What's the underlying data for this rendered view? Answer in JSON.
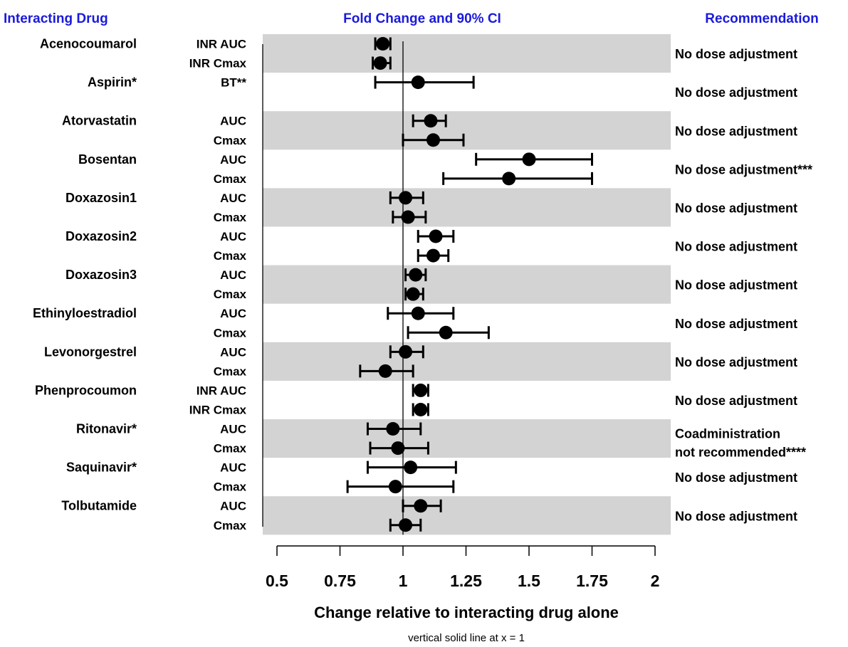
{
  "chart_data": {
    "type": "forest",
    "headers": {
      "left": "Interacting Drug",
      "center": "Fold Change and 90% CI",
      "right": "Recommendation"
    },
    "xlabel": "Change relative to interacting drug alone",
    "note": "vertical solid line at x = 1",
    "xlim": [
      0.45,
      2.05
    ],
    "reference_line": 1,
    "xticks": [
      0.5,
      0.75,
      1,
      1.25,
      1.5,
      1.75,
      2
    ],
    "xtick_labels": [
      "0.5",
      "0.75",
      "1",
      "1.25",
      "1.5",
      "1.75",
      "2"
    ],
    "band_color": "#d3d3d3",
    "groups": [
      {
        "drug": "Acenocoumarol",
        "recommendation": [
          "No dose adjustment"
        ],
        "shaded": true,
        "rows": [
          {
            "metric": "INR AUC",
            "est": 0.92,
            "lo": 0.89,
            "hi": 0.95
          },
          {
            "metric": "INR Cmax",
            "est": 0.91,
            "lo": 0.88,
            "hi": 0.95
          }
        ]
      },
      {
        "drug": "Aspirin*",
        "recommendation": [
          "No dose adjustment"
        ],
        "shaded": false,
        "rows": [
          {
            "metric": "BT**",
            "est": 1.06,
            "lo": 0.89,
            "hi": 1.28
          }
        ]
      },
      {
        "drug": "Atorvastatin",
        "recommendation": [
          "No dose adjustment"
        ],
        "shaded": true,
        "rows": [
          {
            "metric": "AUC",
            "est": 1.11,
            "lo": 1.04,
            "hi": 1.17
          },
          {
            "metric": "Cmax",
            "est": 1.12,
            "lo": 1.0,
            "hi": 1.24
          }
        ]
      },
      {
        "drug": "Bosentan",
        "recommendation": [
          "No dose adjustment***"
        ],
        "shaded": false,
        "rows": [
          {
            "metric": "AUC",
            "est": 1.5,
            "lo": 1.29,
            "hi": 1.75
          },
          {
            "metric": "Cmax",
            "est": 1.42,
            "lo": 1.16,
            "hi": 1.75
          }
        ]
      },
      {
        "drug": "Doxazosin1",
        "recommendation": [
          "No dose adjustment"
        ],
        "shaded": true,
        "rows": [
          {
            "metric": "AUC",
            "est": 1.01,
            "lo": 0.95,
            "hi": 1.08
          },
          {
            "metric": "Cmax",
            "est": 1.02,
            "lo": 0.96,
            "hi": 1.09
          }
        ]
      },
      {
        "drug": "Doxazosin2",
        "recommendation": [
          "No dose adjustment"
        ],
        "shaded": false,
        "rows": [
          {
            "metric": "AUC",
            "est": 1.13,
            "lo": 1.06,
            "hi": 1.2
          },
          {
            "metric": "Cmax",
            "est": 1.12,
            "lo": 1.06,
            "hi": 1.18
          }
        ]
      },
      {
        "drug": "Doxazosin3",
        "recommendation": [
          "No dose adjustment"
        ],
        "shaded": true,
        "rows": [
          {
            "metric": "AUC",
            "est": 1.05,
            "lo": 1.01,
            "hi": 1.09
          },
          {
            "metric": "Cmax",
            "est": 1.04,
            "lo": 1.01,
            "hi": 1.08
          }
        ]
      },
      {
        "drug": "Ethinyloestradiol",
        "recommendation": [
          "No dose adjustment"
        ],
        "shaded": false,
        "rows": [
          {
            "metric": "AUC",
            "est": 1.06,
            "lo": 0.94,
            "hi": 1.2
          },
          {
            "metric": "Cmax",
            "est": 1.17,
            "lo": 1.02,
            "hi": 1.34
          }
        ]
      },
      {
        "drug": "Levonorgestrel",
        "recommendation": [
          "No dose adjustment"
        ],
        "shaded": true,
        "rows": [
          {
            "metric": "AUC",
            "est": 1.01,
            "lo": 0.95,
            "hi": 1.08
          },
          {
            "metric": "Cmax",
            "est": 0.93,
            "lo": 0.83,
            "hi": 1.04
          }
        ]
      },
      {
        "drug": "Phenprocoumon",
        "recommendation": [
          "No dose adjustment"
        ],
        "shaded": false,
        "rows": [
          {
            "metric": "INR AUC",
            "est": 1.07,
            "lo": 1.04,
            "hi": 1.1
          },
          {
            "metric": "INR Cmax",
            "est": 1.07,
            "lo": 1.04,
            "hi": 1.1
          }
        ]
      },
      {
        "drug": "Ritonavir*",
        "recommendation": [
          "Coadministration",
          "not recommended****"
        ],
        "shaded": true,
        "rows": [
          {
            "metric": "AUC",
            "est": 0.96,
            "lo": 0.86,
            "hi": 1.07
          },
          {
            "metric": "Cmax",
            "est": 0.98,
            "lo": 0.87,
            "hi": 1.1
          }
        ]
      },
      {
        "drug": "Saquinavir*",
        "recommendation": [
          "No dose adjustment"
        ],
        "shaded": false,
        "rows": [
          {
            "metric": "AUC",
            "est": 1.03,
            "lo": 0.86,
            "hi": 1.21
          },
          {
            "metric": "Cmax",
            "est": 0.97,
            "lo": 0.78,
            "hi": 1.2
          }
        ]
      },
      {
        "drug": "Tolbutamide",
        "recommendation": [
          "No dose adjustment"
        ],
        "shaded": true,
        "rows": [
          {
            "metric": "AUC",
            "est": 1.07,
            "lo": 1.0,
            "hi": 1.15
          },
          {
            "metric": "Cmax",
            "est": 1.01,
            "lo": 0.95,
            "hi": 1.07
          }
        ]
      }
    ]
  }
}
